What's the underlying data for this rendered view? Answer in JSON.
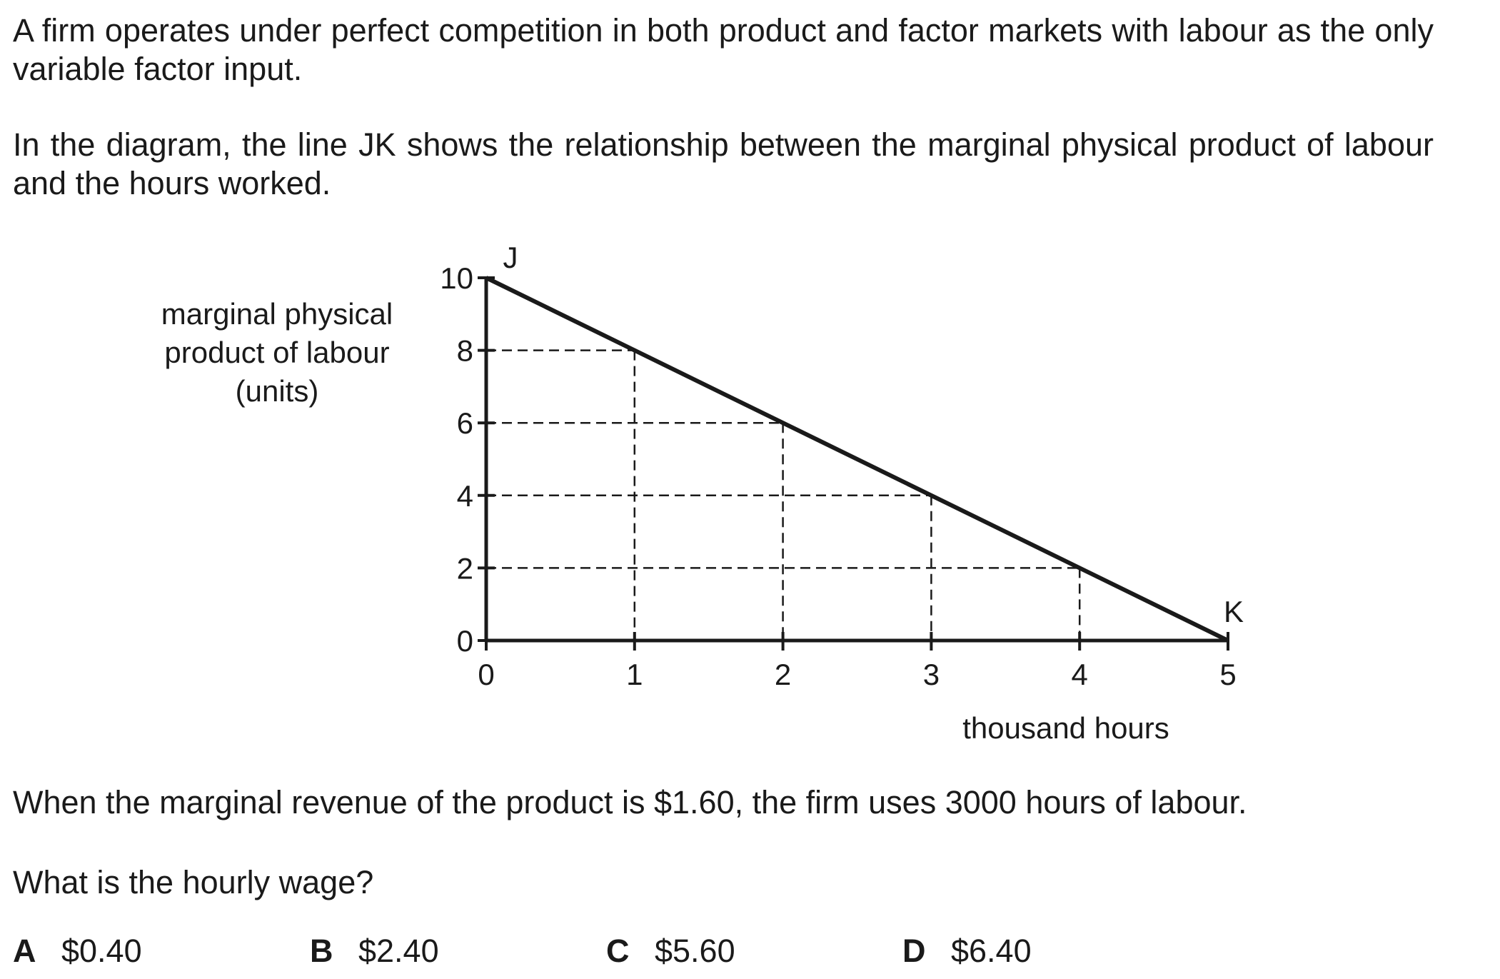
{
  "question": {
    "intro": [
      "A firm operates under perfect competition in both product and factor markets with labour as the only variable factor input.",
      "In the diagram, the line JK shows the relationship between the marginal physical product of labour and the hours worked."
    ],
    "statement": "When the marginal revenue of the product is $1.60, the firm uses 3000 hours of labour.",
    "prompt": "What is the hourly wage?",
    "options": [
      {
        "letter": "A",
        "value": "$0.40"
      },
      {
        "letter": "B",
        "value": "$2.40"
      },
      {
        "letter": "C",
        "value": "$5.60"
      },
      {
        "letter": "D",
        "value": "$6.40"
      }
    ]
  },
  "chart_data": {
    "type": "line",
    "ylabel": [
      "marginal physical",
      "product of labour",
      "(units)"
    ],
    "xlabel": "thousand hours",
    "xlim": [
      0,
      5
    ],
    "ylim": [
      0,
      10
    ],
    "x_ticks": [
      "0",
      "1",
      "2",
      "3",
      "4",
      "5"
    ],
    "y_ticks": [
      "0",
      "2",
      "4",
      "6",
      "8",
      "10"
    ],
    "series": [
      {
        "x": [
          0,
          5
        ],
        "y": [
          10,
          0
        ]
      }
    ],
    "point_labels": [
      {
        "label": "J",
        "x": 0,
        "y": 10
      },
      {
        "label": "K",
        "x": 5,
        "y": 0
      }
    ],
    "dashed_guides": [
      {
        "x": 1,
        "y": 8
      },
      {
        "x": 2,
        "y": 6
      },
      {
        "x": 3,
        "y": 4
      },
      {
        "x": 4,
        "y": 2
      }
    ]
  }
}
